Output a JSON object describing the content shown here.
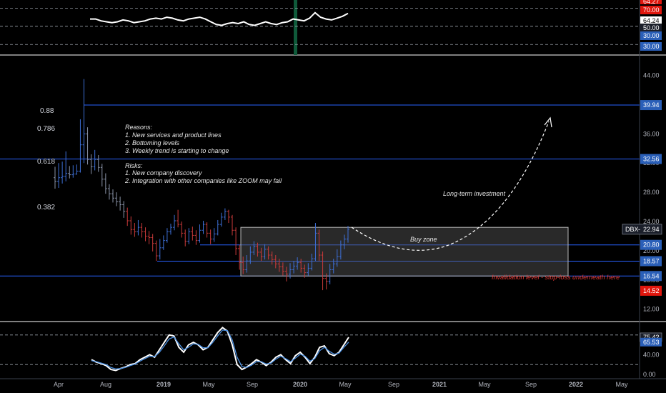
{
  "colors": {
    "background": "#000000",
    "panel_border": "#ffffff",
    "level_line": "#2962ff",
    "badge_blue": "#2a5fb8",
    "badge_red": "#e0160d",
    "candle_up": "#3d6fd6",
    "candle_down": "#c93a3a",
    "candle_neutral": "#8a93a8",
    "zone_fill": "#5a5a5a",
    "osc_white": "#ffffff",
    "osc_blue": "#4a90e2",
    "marker_green": "#0f5a3a"
  },
  "chart_data": [
    {
      "type": "line",
      "panel": "top-oscillator",
      "series": [
        {
          "values": [
            58,
            58,
            56,
            55,
            54,
            55,
            57,
            56,
            54,
            55,
            56,
            58,
            59,
            58,
            60,
            59,
            57,
            56,
            58,
            59,
            60,
            58,
            55,
            52,
            51,
            53,
            54,
            53,
            55,
            52,
            51,
            53,
            55,
            53,
            52,
            54,
            55,
            58,
            57,
            56,
            59,
            65,
            60,
            58,
            57,
            59,
            61,
            64.24
          ]
        }
      ],
      "reference_levels": [
        70,
        50,
        30
      ],
      "axis_labels": [
        "70.00",
        "64.24",
        "50.00",
        "30.00",
        "30.00"
      ]
    },
    {
      "type": "candlestick",
      "panel": "main-price",
      "x_ticks": [
        "Apr",
        "Aug",
        "2019",
        "May",
        "Sep",
        "2020",
        "May",
        "Sep",
        "2021",
        "May",
        "Sep",
        "2022",
        "May"
      ],
      "y_ticks": [
        "44.00",
        "40.00",
        "36.00",
        "32.00",
        "28.00",
        "24.00",
        "20.00",
        "16.00",
        "12.00"
      ],
      "ylim": [
        10.5,
        46.5
      ],
      "candles": [
        [
          30,
          29.5,
          31.5,
          28.5
        ],
        [
          29.5,
          30,
          32,
          28.6
        ],
        [
          30,
          30.2,
          32.2,
          29.2
        ],
        [
          30.2,
          30.6,
          33.6,
          29.5
        ],
        [
          30.6,
          30.4,
          31.6,
          29.9
        ],
        [
          30.4,
          30.5,
          31.7,
          30
        ],
        [
          30.5,
          30.9,
          31.8,
          30.4
        ],
        [
          30.9,
          34.5,
          38,
          30.7
        ],
        [
          34.5,
          36,
          43.5,
          32
        ],
        [
          36,
          32.5,
          36.9,
          31.8
        ],
        [
          32.5,
          31.5,
          33.2,
          30.5
        ],
        [
          31.5,
          32.5,
          33.8,
          31
        ],
        [
          32.5,
          31.4,
          33.1,
          30.8
        ],
        [
          31.4,
          29.8,
          31.9,
          28.8
        ],
        [
          29.8,
          28.5,
          30.6,
          27.8
        ],
        [
          28.5,
          27.8,
          29.1,
          27
        ],
        [
          27.8,
          27.2,
          28.4,
          26.6
        ],
        [
          27.2,
          26.7,
          28,
          26.1
        ],
        [
          26.7,
          26.3,
          27.4,
          25.5
        ],
        [
          26.3,
          25.4,
          26.8,
          24.5
        ],
        [
          25.4,
          24.1,
          25.9,
          23.4
        ],
        [
          24.1,
          22.9,
          24.7,
          22.2
        ],
        [
          22.9,
          22.6,
          23.8,
          21.9
        ],
        [
          22.6,
          23.2,
          24.2,
          22.1
        ],
        [
          23.2,
          22.6,
          23.8,
          21.8
        ],
        [
          22.6,
          22,
          23.2,
          21.3
        ],
        [
          22,
          21.8,
          22.7,
          20.9
        ],
        [
          21.8,
          21,
          22.3,
          19.9
        ],
        [
          21,
          19.3,
          21.4,
          18.6
        ],
        [
          19.3,
          20.4,
          21.6,
          18.8
        ],
        [
          20.4,
          21.4,
          22.1,
          20.1
        ],
        [
          21.4,
          22.6,
          23.1,
          21.1
        ],
        [
          22.6,
          23.2,
          23.7,
          22.2
        ],
        [
          23.2,
          24.1,
          24.9,
          22.8
        ],
        [
          24.1,
          23.6,
          25.6,
          23.2
        ],
        [
          23.6,
          22.4,
          24,
          21.8
        ],
        [
          22.4,
          21.3,
          22.9,
          20.6
        ],
        [
          21.3,
          22.6,
          23.1,
          20.9
        ],
        [
          22.6,
          22.1,
          23.3,
          21.4
        ],
        [
          22.1,
          21.4,
          22.8,
          20.8
        ],
        [
          21.4,
          22.8,
          23.6,
          21.1
        ],
        [
          22.8,
          23.6,
          24.1,
          22.3
        ],
        [
          23.6,
          22.4,
          23.9,
          21.8
        ],
        [
          22.4,
          21.6,
          22.9,
          20.9
        ],
        [
          21.6,
          22.3,
          23.1,
          21.2
        ],
        [
          22.3,
          23.6,
          24.2,
          22.1
        ],
        [
          23.6,
          24.6,
          25.2,
          23.3
        ],
        [
          24.6,
          25.4,
          25.8,
          24.2
        ],
        [
          25.4,
          24.6,
          25.6,
          23.8
        ],
        [
          24.6,
          22.8,
          24.9,
          22.1
        ],
        [
          22.8,
          20.3,
          23.2,
          19.4
        ],
        [
          20.3,
          18.4,
          20.8,
          17.4
        ],
        [
          18.4,
          17.4,
          19.2,
          16.8
        ],
        [
          17.4,
          18.6,
          19.4,
          17
        ],
        [
          18.6,
          19.8,
          20.6,
          18.2
        ],
        [
          19.8,
          20.6,
          21.3,
          19.4
        ],
        [
          20.6,
          19.8,
          21.1,
          19.2
        ],
        [
          19.8,
          19.2,
          20.4,
          18.6
        ],
        [
          19.2,
          20.2,
          20.9,
          18.8
        ],
        [
          20.2,
          19.4,
          20.6,
          18.8
        ],
        [
          19.4,
          18.8,
          19.9,
          18.1
        ],
        [
          18.8,
          18.2,
          19.4,
          17.6
        ],
        [
          18.2,
          17.8,
          18.9,
          17.1
        ],
        [
          17.8,
          17.2,
          18.4,
          16.6
        ],
        [
          17.2,
          16.8,
          17.8,
          15.8
        ],
        [
          16.8,
          17.4,
          18.3,
          16.2
        ],
        [
          17.4,
          17.9,
          18.6,
          16.9
        ],
        [
          17.9,
          18.4,
          19.1,
          17.4
        ],
        [
          18.4,
          17.6,
          18.9,
          17
        ],
        [
          17.6,
          17,
          18.1,
          16.3
        ],
        [
          17,
          17.6,
          18.3,
          16.6
        ],
        [
          17.6,
          18.9,
          19.6,
          17.3
        ],
        [
          18.9,
          22.4,
          23.8,
          18.6
        ],
        [
          22.4,
          19.4,
          22.9,
          18.6
        ],
        [
          19.4,
          16.2,
          19.9,
          14.6
        ],
        [
          16.2,
          15.8,
          16.9,
          14.7
        ],
        [
          15.8,
          17.4,
          18.2,
          15.4
        ],
        [
          17.4,
          18.2,
          18.9,
          16.9
        ],
        [
          18.2,
          19.2,
          20.2,
          17.8
        ],
        [
          19.2,
          20.8,
          21.4,
          18.8
        ],
        [
          20.8,
          21.6,
          22.2,
          20.2
        ],
        [
          21.6,
          22.94,
          23.4,
          21.1
        ]
      ],
      "levels": [
        {
          "value": 39.94,
          "label": "39.94",
          "color": "badge_blue"
        },
        {
          "value": 32.56,
          "label": "32.56",
          "color": "badge_blue"
        },
        {
          "value": 20.8,
          "label": "20.80",
          "color": "badge_blue"
        },
        {
          "value": 18.57,
          "label": "18.57",
          "color": "badge_blue"
        },
        {
          "value": 16.54,
          "label": "16.54",
          "color": "badge_blue"
        },
        {
          "value": 14.52,
          "label": "14.52",
          "color": "badge_red"
        }
      ],
      "current_price": {
        "symbol": "DBX",
        "value": 22.94,
        "label": "22.94"
      },
      "fib_levels": [
        {
          "ratio": "0.88",
          "value": 39.94
        },
        {
          "ratio": "0.786",
          "value": 37.0
        },
        {
          "ratio": "0.618",
          "value": 32.56
        },
        {
          "ratio": "0.382",
          "value": 25.6
        }
      ],
      "buy_zone": {
        "top": 23.2,
        "bottom": 16.54,
        "label": "Buy zone"
      },
      "projection_label": "Long-term investment",
      "invalidation_label": "Invalidation level - stop-loss underneath here"
    },
    {
      "type": "line",
      "panel": "bottom-oscillator",
      "series": [
        {
          "name": "",
          "values": [
            30,
            25,
            22,
            18,
            10,
            8,
            12,
            15,
            20,
            22,
            30,
            35,
            40,
            35,
            50,
            65,
            80,
            78,
            55,
            45,
            60,
            65,
            60,
            50,
            55,
            70,
            85,
            95,
            88,
            60,
            20,
            10,
            15,
            22,
            30,
            25,
            18,
            25,
            35,
            40,
            30,
            22,
            38,
            45,
            35,
            22,
            35,
            55,
            58,
            42,
            38,
            45,
            60,
            75.42
          ]
        },
        {
          "name": "",
          "values": [
            28,
            26,
            23,
            20,
            14,
            11,
            12,
            14,
            18,
            21,
            27,
            32,
            37,
            36,
            45,
            58,
            72,
            76,
            62,
            50,
            55,
            62,
            61,
            54,
            54,
            65,
            78,
            90,
            89,
            70,
            35,
            16,
            14,
            19,
            26,
            26,
            21,
            23,
            31,
            37,
            32,
            26,
            33,
            41,
            37,
            27,
            32,
            48,
            55,
            47,
            41,
            43,
            55,
            65.53
          ]
        }
      ],
      "reference_levels": [
        80,
        20
      ],
      "y_ticks": [
        "40.00",
        "0.00"
      ],
      "axis_labels": [
        "75.42",
        "65.53"
      ]
    }
  ],
  "notes": {
    "reasons_title": "Reasons:",
    "reasons": [
      "1. New services and product lines",
      "2. Bottoming levels",
      "3. Weekly trend is starting to change"
    ],
    "risks_title": "Risks:",
    "risks": [
      "1. New company discovery",
      "2. Integration with other companies like ZOOM may fail"
    ]
  },
  "top_partial_label": "64.27"
}
